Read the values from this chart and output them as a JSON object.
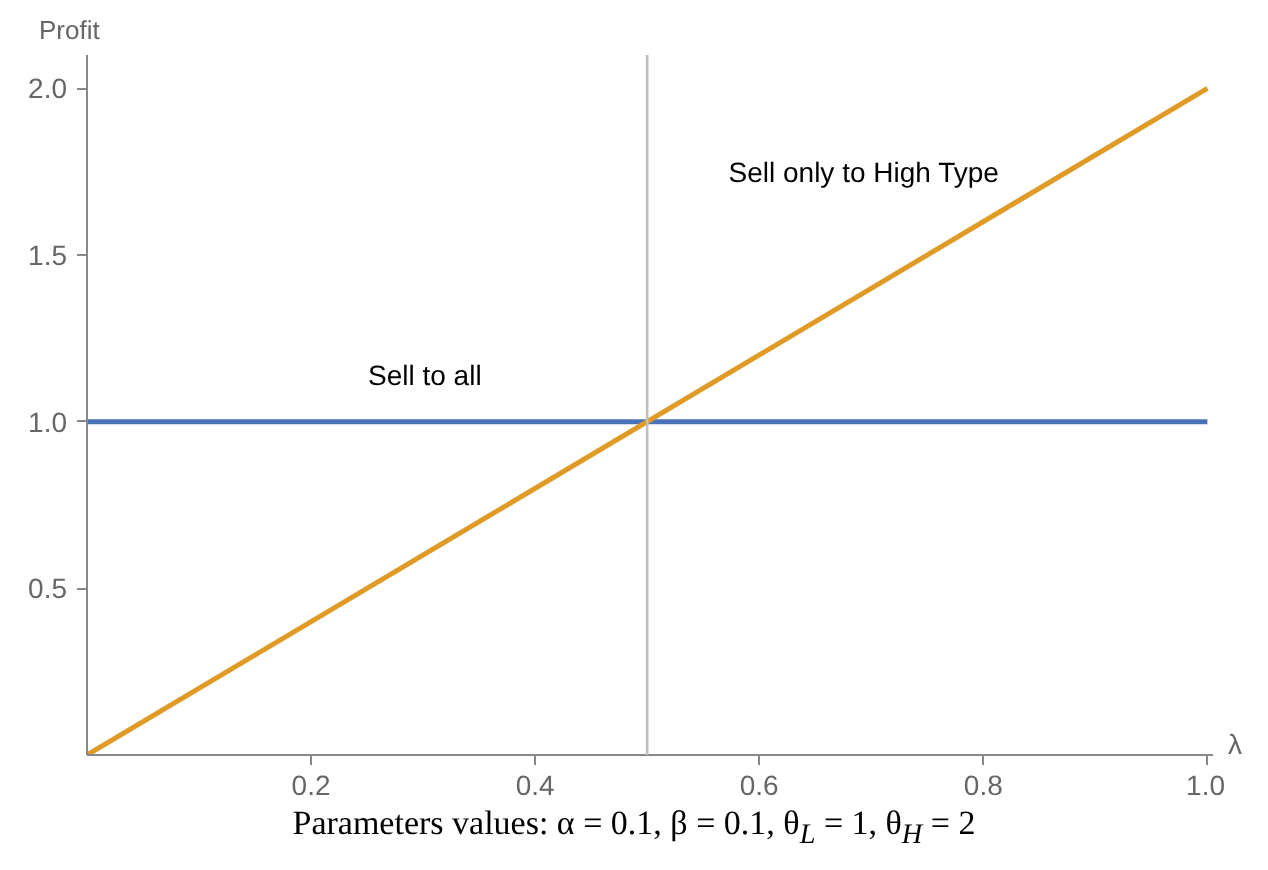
{
  "chart_data": {
    "type": "line",
    "xlabel": "λ",
    "ylabel": "Profit",
    "x": [
      0,
      1
    ],
    "series": [
      {
        "name": "Sell to all",
        "color": "#4a72b8",
        "values": [
          1,
          1
        ]
      },
      {
        "name": "Sell only to High Type",
        "color": "#e09b27",
        "values": [
          0,
          2
        ]
      }
    ],
    "xlim": [
      0,
      1.005
    ],
    "ylim": [
      0,
      2.1
    ],
    "xticks": [
      0.2,
      0.4,
      0.6,
      0.8,
      {
        "value": 1,
        "label": "1.0"
      }
    ],
    "yticks": [
      0.5,
      {
        "value": 1,
        "label": "1.0"
      },
      1.5,
      {
        "value": 2,
        "label": "2.0"
      }
    ],
    "ref_lines": [
      {
        "axis": "x",
        "value": 0.5,
        "color": "#c0c0c0"
      }
    ],
    "annotations": [
      "Parameters values: α = 0.1, β = 0.1, θ$_{L}$ = 1, θ$_{H}$ = 2"
    ],
    "grid": false,
    "legend": false,
    "marker": "none",
    "line_style": "solid"
  }
}
